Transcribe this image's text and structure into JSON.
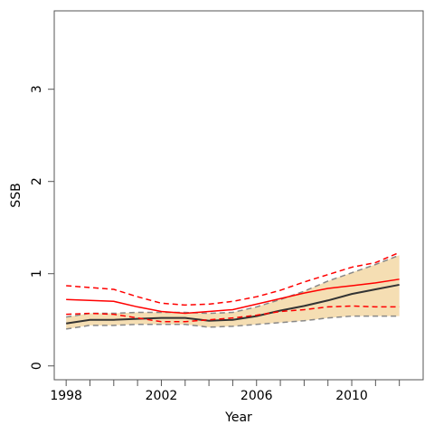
{
  "chart_data": {
    "type": "line",
    "title": "",
    "xlabel": "Year",
    "ylabel": "SSB",
    "xlim": [
      1997.5,
      2013.0
    ],
    "ylim": [
      -0.15,
      3.85
    ],
    "x_ticks": [
      1998,
      1999,
      2000,
      2001,
      2002,
      2003,
      2004,
      2005,
      2006,
      2007,
      2008,
      2009,
      2010,
      2011,
      2012
    ],
    "x_tick_labels": [
      1998,
      2002,
      2006,
      2010
    ],
    "y_ticks": [
      0,
      1,
      2,
      3
    ],
    "grid": false,
    "legend": "none",
    "x": [
      1998,
      1999,
      2000,
      2001,
      2002,
      2003,
      2004,
      2005,
      2006,
      2007,
      2008,
      2009,
      2010,
      2011,
      2012
    ],
    "band": {
      "color": "#f5deb3",
      "lower": [
        0.4,
        0.44,
        0.44,
        0.45,
        0.45,
        0.45,
        0.42,
        0.43,
        0.45,
        0.47,
        0.49,
        0.52,
        0.54,
        0.54,
        0.54
      ],
      "upper": [
        0.53,
        0.57,
        0.57,
        0.58,
        0.58,
        0.58,
        0.57,
        0.58,
        0.64,
        0.72,
        0.81,
        0.92,
        1.01,
        1.1,
        1.2
      ]
    },
    "series": [
      {
        "role": "estimate",
        "color": "#333333",
        "dash": "solid",
        "values": [
          0.46,
          0.5,
          0.5,
          0.51,
          0.52,
          0.52,
          0.49,
          0.5,
          0.54,
          0.6,
          0.65,
          0.71,
          0.78,
          0.83,
          0.88
        ]
      },
      {
        "role": "lower-bound",
        "color": "#888888",
        "dash": "dashed",
        "values": [
          0.4,
          0.44,
          0.44,
          0.45,
          0.45,
          0.45,
          0.42,
          0.43,
          0.45,
          0.47,
          0.49,
          0.52,
          0.54,
          0.54,
          0.54
        ]
      },
      {
        "role": "upper-bound",
        "color": "#888888",
        "dash": "dashed",
        "values": [
          0.53,
          0.57,
          0.57,
          0.58,
          0.58,
          0.58,
          0.57,
          0.58,
          0.64,
          0.72,
          0.81,
          0.92,
          1.01,
          1.1,
          1.2
        ]
      },
      {
        "role": "estimate",
        "color": "#ff0000",
        "dash": "solid",
        "values": [
          0.72,
          0.71,
          0.7,
          0.64,
          0.59,
          0.57,
          0.59,
          0.61,
          0.67,
          0.73,
          0.79,
          0.84,
          0.87,
          0.9,
          0.94
        ]
      },
      {
        "role": "upper-bound",
        "color": "#ff0000",
        "dash": "dashed",
        "values": [
          0.87,
          0.85,
          0.83,
          0.75,
          0.68,
          0.66,
          0.67,
          0.7,
          0.75,
          0.82,
          0.91,
          0.99,
          1.07,
          1.12,
          1.23
        ]
      },
      {
        "role": "lower-bound",
        "color": "#ff0000",
        "dash": "dashed",
        "values": [
          0.56,
          0.57,
          0.56,
          0.52,
          0.48,
          0.48,
          0.5,
          0.52,
          0.55,
          0.59,
          0.61,
          0.64,
          0.65,
          0.64,
          0.64
        ]
      }
    ]
  }
}
